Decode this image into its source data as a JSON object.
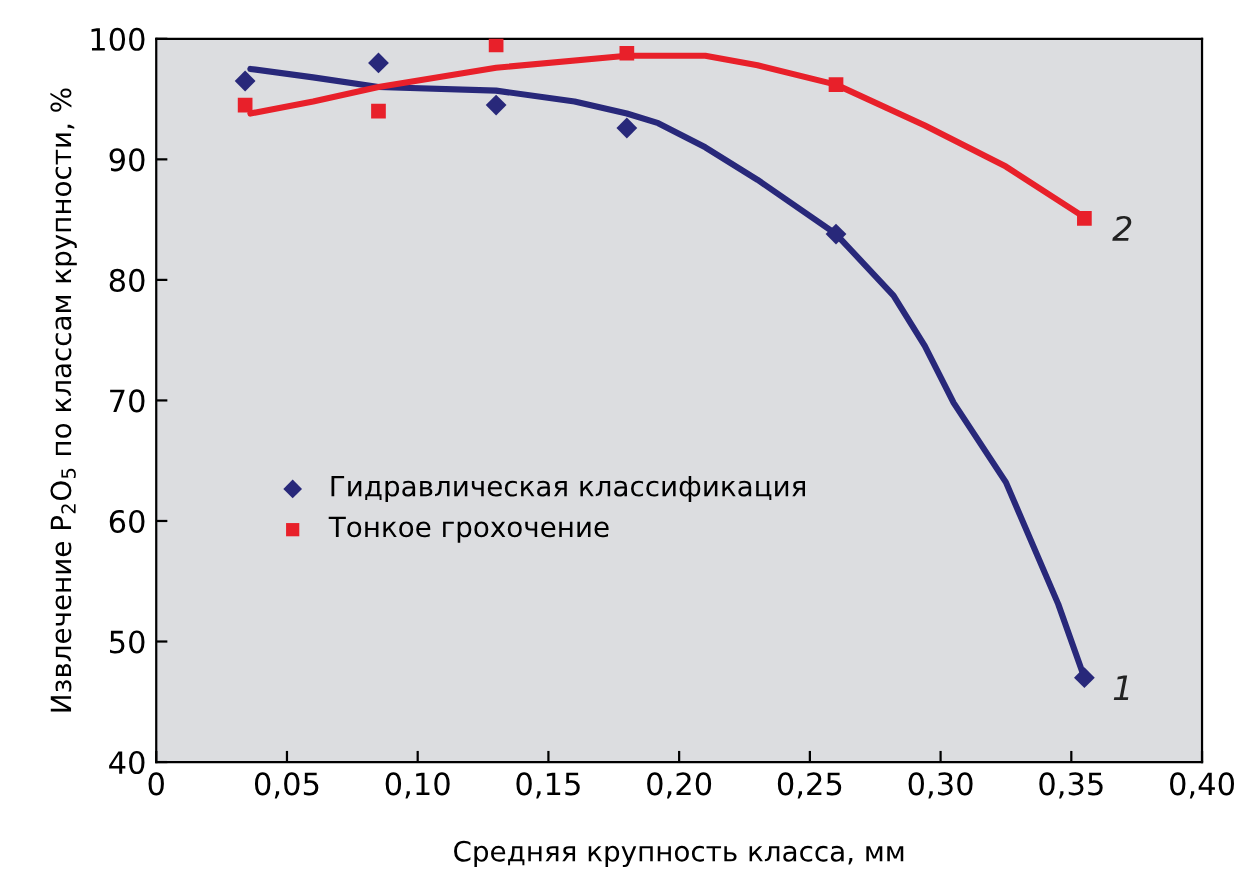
{
  "chart_data": {
    "type": "scatter",
    "xlabel": "Средняя крупность класса, мм",
    "ylabel": "Извлечение P$_{2}$O$_{5}$ по классам крупности, %",
    "xlim": [
      0,
      0.4
    ],
    "ylim": [
      40,
      100
    ],
    "xticks": [
      {
        "value": 0,
        "label": "0"
      },
      {
        "value": 0.05,
        "label": "0,05"
      },
      {
        "value": 0.1,
        "label": "0,10"
      },
      {
        "value": 0.15,
        "label": "0,15"
      },
      {
        "value": 0.2,
        "label": "0,20"
      },
      {
        "value": 0.25,
        "label": "0,25"
      },
      {
        "value": 0.3,
        "label": "0,30"
      },
      {
        "value": 0.35,
        "label": "0,35"
      },
      {
        "value": 0.4,
        "label": "0,40"
      }
    ],
    "yticks": [
      40,
      50,
      60,
      70,
      80,
      90,
      100
    ],
    "grid": false,
    "legend": "left",
    "series": [
      {
        "name": "Гидравлическая классификация",
        "marker": "diamond",
        "color": "#28287a",
        "x": [
          0.034,
          0.085,
          0.13,
          0.18,
          0.26,
          0.355
        ],
        "values": [
          96.5,
          98.0,
          94.5,
          92.6,
          83.8,
          47.0
        ]
      },
      {
        "name": "Тонкое грохочение",
        "marker": "square",
        "color": "#e8202a",
        "x": [
          0.034,
          0.085,
          0.13,
          0.18,
          0.26,
          0.355
        ],
        "values": [
          94.5,
          94.0,
          99.5,
          98.8,
          96.2,
          85.1
        ]
      },
      {
        "type": "line",
        "marker": "none",
        "line_style": "solid",
        "color": "#28287a",
        "x": [
          0.036,
          0.06,
          0.085,
          0.13,
          0.16,
          0.18,
          0.192,
          0.21,
          0.23,
          0.26,
          0.282,
          0.294,
          0.305,
          0.325,
          0.345,
          0.355
        ],
        "values": [
          97.5,
          96.8,
          96.0,
          95.7,
          94.8,
          93.8,
          93.0,
          91.0,
          88.3,
          83.8,
          78.7,
          74.5,
          69.8,
          63.2,
          53.1,
          47.0
        ]
      },
      {
        "type": "line",
        "marker": "none",
        "line_style": "solid",
        "color": "#e8202a",
        "x": [
          0.036,
          0.06,
          0.085,
          0.13,
          0.18,
          0.21,
          0.23,
          0.26,
          0.294,
          0.325,
          0.355
        ],
        "values": [
          93.8,
          94.8,
          96.0,
          97.6,
          98.6,
          98.6,
          97.8,
          96.2,
          92.8,
          89.4,
          85.2
        ]
      }
    ],
    "annotations": [
      {
        "text": "1",
        "x": 0.355,
        "y": 47.0
      },
      {
        "text": "2",
        "x": 0.355,
        "y": 85.1
      }
    ]
  }
}
